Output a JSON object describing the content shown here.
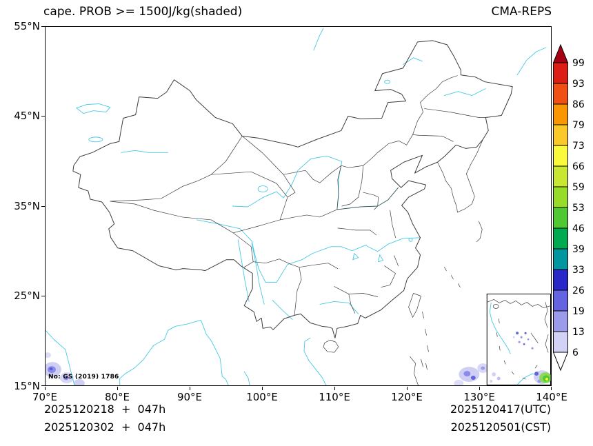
{
  "header": {
    "title_left": "cape. PROB >= 1500J/kg(shaded)",
    "title_right": "CMA-REPS"
  },
  "axes": {
    "lat_ticks": [
      "55°N",
      "45°N",
      "35°N",
      "25°N",
      "15°N"
    ],
    "lon_ticks": [
      "70°E",
      "80°E",
      "90°E",
      "100°E",
      "110°E",
      "120°E",
      "130°E",
      "140°E"
    ]
  },
  "colorbar": {
    "labels": [
      "99",
      "93",
      "86",
      "79",
      "73",
      "66",
      "59",
      "53",
      "46",
      "39",
      "33",
      "26",
      "19",
      "13",
      "6"
    ],
    "colors_top_to_bottom": [
      "#a50014",
      "#dc1e14",
      "#f05014",
      "#fa9600",
      "#fac828",
      "#fafa3c",
      "#c8e632",
      "#96dc28",
      "#50c832",
      "#00aa50",
      "#0096a0",
      "#2828c8",
      "#6464e0",
      "#9b9bec",
      "#d2d2f6",
      "#ffffff"
    ]
  },
  "map": {
    "license": "No: GS (2019) 1786"
  },
  "footer": {
    "left_line1": "2025120218  +  047h",
    "left_line2": "2025120302  +  047h",
    "right_line1": "2025120417(UTC)",
    "right_line2": "2025120501(CST)"
  }
}
